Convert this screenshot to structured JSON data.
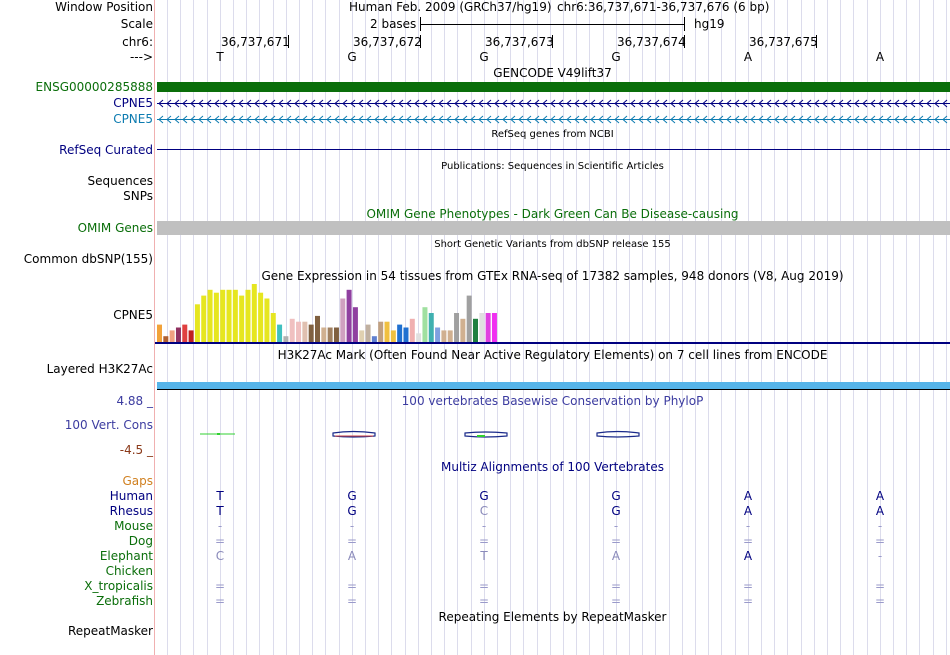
{
  "colors": {
    "gencode_bar": "#0a6e0a",
    "ensg_label": "#0a6e0a",
    "cpne5_refseq": "#000080",
    "cpne5_alt": "#0c7bb0",
    "omim_bar": "#c0c0c0",
    "h3k27ac_band": "#56b4e9",
    "phylop_label": "#3c3ca0",
    "conservation": "#1a2a8a",
    "gaps": "#d08020",
    "species_primate": "#000080",
    "species_other": "#0a6e0a",
    "neg_value": "#8b3a1a"
  },
  "header": {
    "window_position_label": "Window Position",
    "assembly_text": "Human Feb. 2009 (GRCh37/hg19)",
    "position_text": "chr6:36,737,671-36,737,676 (6 bp)",
    "scale_label": "Scale",
    "scale_value": "2 bases",
    "scale_db": "hg19",
    "chrom_label": "chr6:",
    "strand_label": "--->",
    "ruler_positions": [
      "36,737,671",
      "36,737,672",
      "36,737,673",
      "36,737,674",
      "36,737,675"
    ]
  },
  "sequence": [
    "T",
    "G",
    "G",
    "G",
    "A",
    "A"
  ],
  "tracks": {
    "gencode": {
      "title": "GENCODE V49lift37",
      "label": "ENSG00000285888"
    },
    "cpne5_a": {
      "label": "CPNE5"
    },
    "cpne5_b": {
      "label": "CPNE5"
    },
    "refseq": {
      "title": "RefSeq genes from NCBI",
      "label": "RefSeq Curated"
    },
    "pubs": {
      "title": "Publications: Sequences in Scientific Articles",
      "label1": "Sequences",
      "label2": "SNPs"
    },
    "omim": {
      "title": "OMIM Gene Phenotypes - Dark Green Can Be Disease-causing",
      "label": "OMIM Genes"
    },
    "dbsnp": {
      "title": "Short Genetic Variants from dbSNP release 155",
      "label": "Common dbSNP(155)"
    },
    "gtex": {
      "title": "Gene Expression in 54 tissues from GTEx RNA-seq of 17382 samples, 948 donors (V8, Aug 2019)",
      "label": "CPNE5",
      "levels": [
        0.3,
        0.1,
        0.2,
        0.25,
        0.3,
        0.2,
        0.65,
        0.8,
        0.9,
        0.85,
        0.9,
        0.9,
        0.9,
        0.8,
        0.9,
        1.0,
        0.85,
        0.75,
        0.5,
        0.3,
        0.1,
        0.4,
        0.35,
        0.35,
        0.3,
        0.45,
        0.25,
        0.25,
        0.25,
        0.75,
        0.9,
        0.6,
        0.2,
        0.3,
        0.1,
        0.35,
        0.35,
        0.2,
        0.3,
        0.25,
        0.4,
        0.15,
        0.6,
        0.5,
        0.25,
        0.2,
        0.2,
        0.5,
        0.4,
        0.8,
        0.4,
        0.5,
        0.5,
        0.5
      ],
      "bar_colors": [
        "#f2a23a",
        "#b06030",
        "#f0a080",
        "#903060",
        "#e04040",
        "#c02020",
        "#e6e620",
        "#e6e620",
        "#e6e620",
        "#e6e620",
        "#e6e620",
        "#e6e620",
        "#e6e620",
        "#e6e620",
        "#e6e620",
        "#e6e620",
        "#e6e620",
        "#e6e620",
        "#e6e620",
        "#40c0c0",
        "#b0b0b0",
        "#f0c0c0",
        "#f0c0c0",
        "#e0c0b0",
        "#806040",
        "#806040",
        "#d0b090",
        "#a08060",
        "#806040",
        "#d0a0c0",
        "#9040a0",
        "#9040a0",
        "#e0d0b0",
        "#c0b0a0",
        "#6080d0",
        "#c0a080",
        "#f0c040",
        "#f0c040",
        "#2070d0",
        "#2070d0",
        "#f0b0b0",
        "#e0e0e0",
        "#a0e0a0",
        "#40b0b0",
        "#80a0e0",
        "#d0b090",
        "#d0b090",
        "#a0a0a0",
        "#d0b090",
        "#a0a0a0",
        "#208040",
        "#e0e0e0",
        "#e040e0",
        "#f030f0"
      ]
    },
    "h3k27ac": {
      "title": "H3K27Ac Mark (Often Found Near Active Regulatory Elements) on 7 cell lines from ENCODE",
      "label": "Layered H3K27Ac"
    },
    "phylop": {
      "title": "100 vertebrates Basewise Conservation by PhyloP",
      "label": "100 Vert. Cons",
      "max_value": "4.88 _",
      "min_value": "-4.5 _"
    },
    "multiz": {
      "title": "Multiz Alignments of 100 Vertebrates",
      "gaps_label": "Gaps",
      "species": [
        {
          "name": "Human",
          "bases": [
            "T",
            "G",
            "G",
            "G",
            "A",
            "A"
          ]
        },
        {
          "name": "Rhesus",
          "bases": [
            "T",
            "G",
            "C",
            "G",
            "A",
            "A"
          ]
        },
        {
          "name": "Mouse",
          "bases": [
            "-",
            "-",
            "-",
            "-",
            "-",
            "-"
          ]
        },
        {
          "name": "Dog",
          "bases": [
            "=",
            "=",
            "=",
            "=",
            "=",
            "="
          ]
        },
        {
          "name": "Elephant",
          "bases": [
            "C",
            "A",
            "T",
            "A",
            "A",
            "-"
          ]
        },
        {
          "name": "Chicken",
          "bases": [
            "",
            "",
            "",
            "",
            "",
            ""
          ]
        },
        {
          "name": "X_tropicalis",
          "bases": [
            "=",
            "=",
            "=",
            "=",
            "=",
            "="
          ]
        },
        {
          "name": "Zebrafish",
          "bases": [
            "=",
            "=",
            "=",
            "=",
            "=",
            "="
          ]
        }
      ]
    },
    "repeatmasker": {
      "title": "Repeating Elements by RepeatMasker",
      "label": "RepeatMasker"
    }
  }
}
